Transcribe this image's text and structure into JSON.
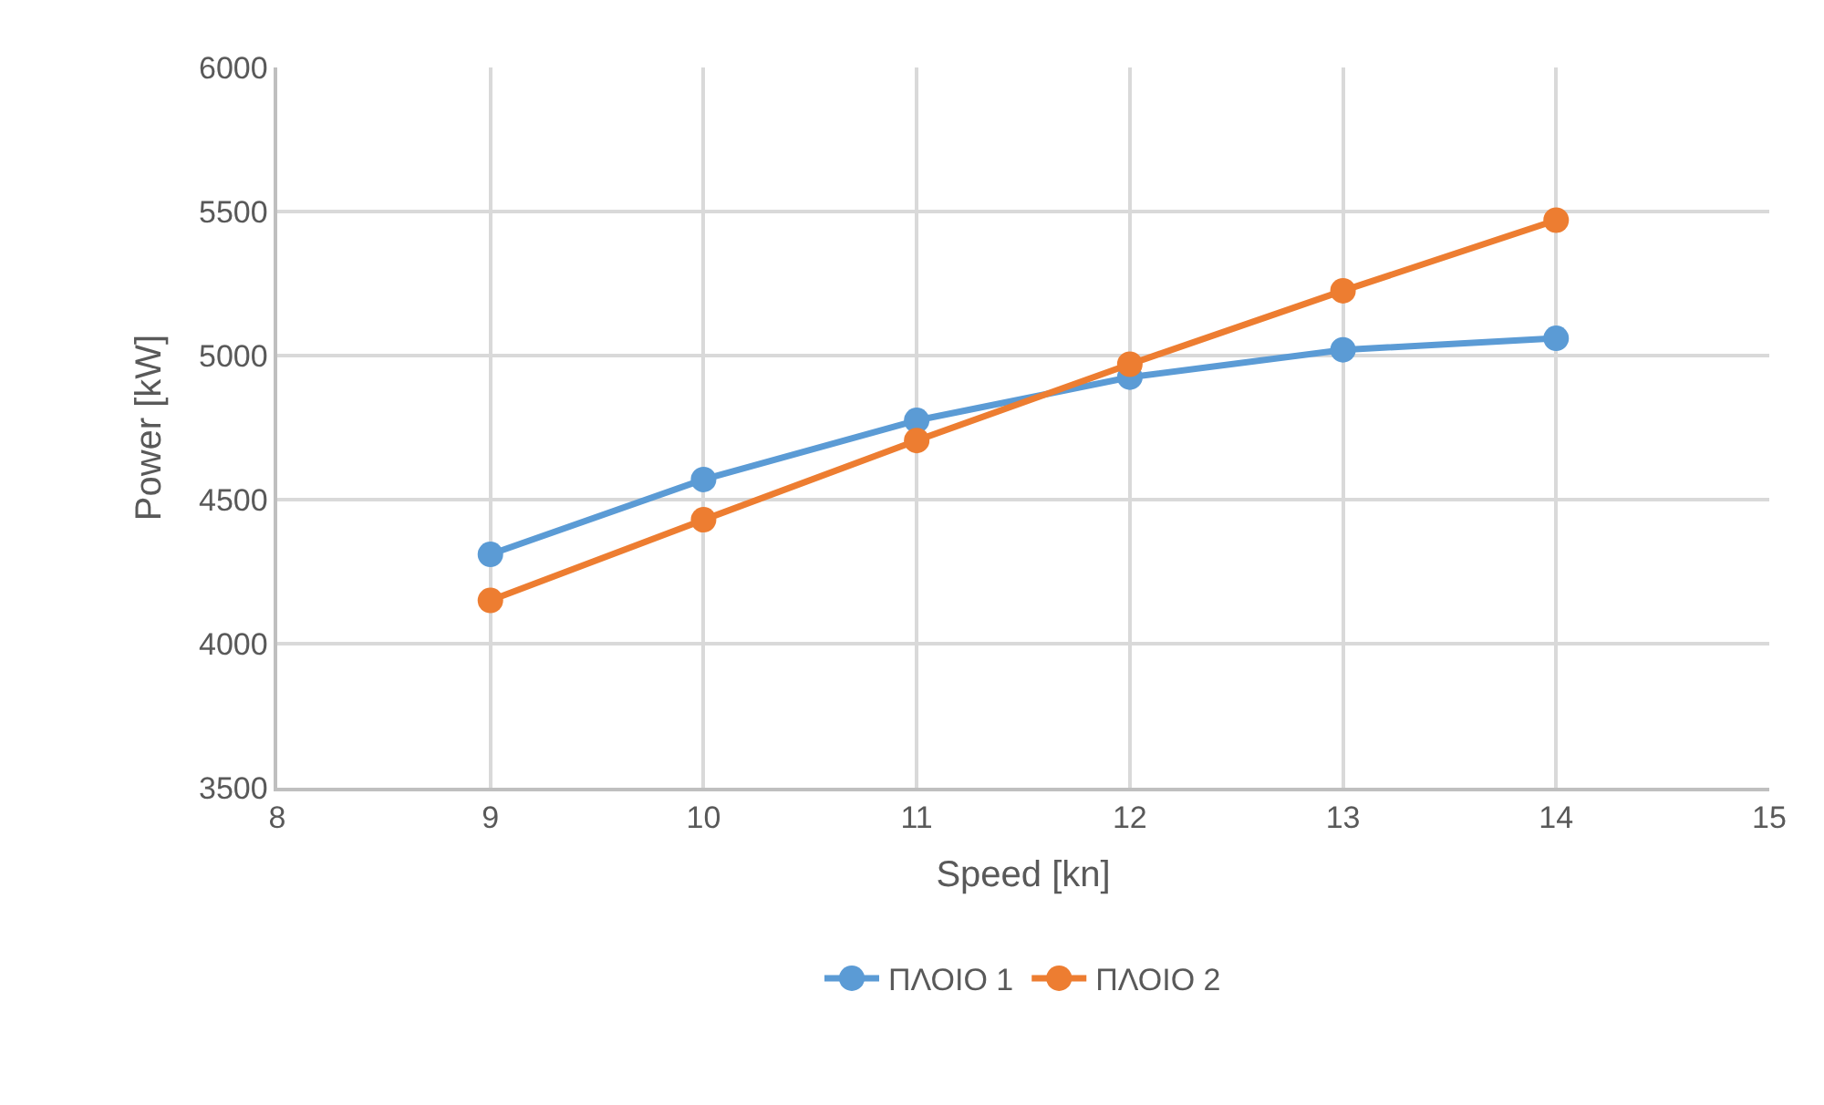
{
  "chart_data": {
    "type": "line",
    "xlabel": "Speed [kn]",
    "ylabel": "Power [kW]",
    "x": [
      9,
      10,
      11,
      12,
      13,
      14
    ],
    "series": [
      {
        "name": "ΠΛΟΙΟ 1",
        "color": "#5b9bd5",
        "values": [
          4310,
          4570,
          4775,
          4925,
          5020,
          5060
        ]
      },
      {
        "name": "ΠΛΟΙΟ 2",
        "color": "#ed7d31",
        "values": [
          4150,
          4430,
          4705,
          4970,
          5225,
          5470
        ]
      }
    ],
    "xlim": [
      8,
      15
    ],
    "xticks": [
      8,
      9,
      10,
      11,
      12,
      13,
      14,
      15
    ],
    "ylim": [
      3500,
      6000
    ],
    "yticks": [
      3500,
      4000,
      4500,
      5000,
      5500,
      6000
    ],
    "grid": true,
    "legend": "bottom",
    "marker": "circle",
    "line_style": "solid"
  }
}
